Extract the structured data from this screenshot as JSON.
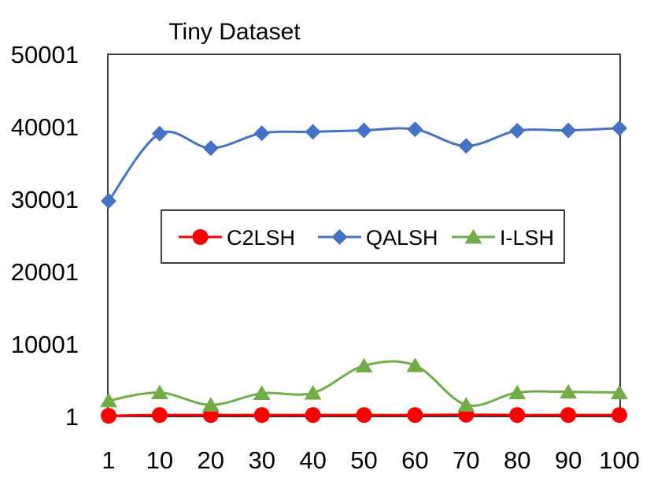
{
  "chart_data": {
    "type": "line",
    "title": "Tiny Dataset",
    "xlabel": "",
    "ylabel": "",
    "categories": [
      "1",
      "10",
      "20",
      "30",
      "40",
      "50",
      "60",
      "70",
      "80",
      "90",
      "100"
    ],
    "ylim": [
      1,
      50001
    ],
    "yticks": [
      "1",
      "10001",
      "20001",
      "30001",
      "40001",
      "50001"
    ],
    "grid": false,
    "smooth": true,
    "legend_position": "center",
    "series": [
      {
        "name": "C2LSH",
        "color": "#ff0000",
        "marker": "circle",
        "values": [
          101,
          201,
          201,
          201,
          201,
          201,
          201,
          251,
          201,
          201,
          201
        ]
      },
      {
        "name": "QALSH",
        "color": "#4472c4",
        "marker": "diamond",
        "values": [
          29751,
          39051,
          37051,
          39101,
          39301,
          39501,
          39651,
          37351,
          39451,
          39501,
          39801
        ]
      },
      {
        "name": "I-LSH",
        "color": "#70ad47",
        "marker": "triangle",
        "values": [
          2201,
          3301,
          1601,
          3201,
          3251,
          7001,
          7051,
          1601,
          3301,
          3401,
          3301
        ]
      }
    ]
  }
}
